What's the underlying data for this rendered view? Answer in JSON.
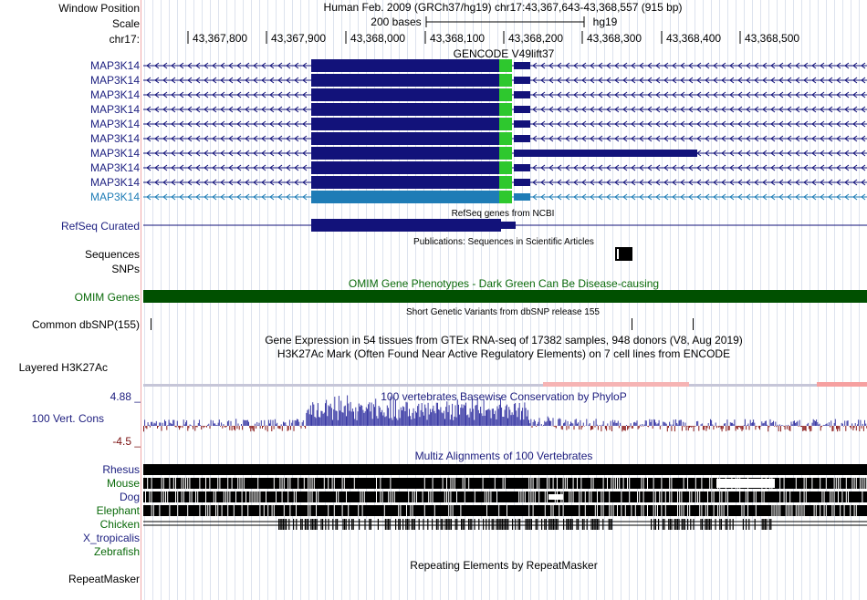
{
  "header": {
    "window_position_label": "Window Position",
    "window_position_value": "Human Feb. 2009 (GRCh37/hg19)   chr17:43,367,643-43,368,557 (915 bp)",
    "scale_label": "Scale",
    "scale_value": "200 bases",
    "scale_assembly": "hg19",
    "chrom_label": "chr17:",
    "ruler_ticks": [
      "43,367,800",
      "43,367,900",
      "43,368,000",
      "43,368,100",
      "43,368,200",
      "43,368,300",
      "43,368,400",
      "43,368,500"
    ]
  },
  "tracks": {
    "gencode_title": "GENCODE V49lift37",
    "gencode_genes": [
      "MAP3K14",
      "MAP3K14",
      "MAP3K14",
      "MAP3K14",
      "MAP3K14",
      "MAP3K14",
      "MAP3K14",
      "MAP3K14",
      "MAP3K14",
      "MAP3K14"
    ],
    "refseq_title": "RefSeq genes from NCBI",
    "refseq_label": "RefSeq Curated",
    "publications_title": "Publications: Sequences in Scientific Articles",
    "sequences_label": "Sequences",
    "snps_label": "SNPs",
    "omim_title": "OMIM Gene Phenotypes - Dark Green Can Be Disease-causing",
    "omim_label": "OMIM Genes",
    "dbsnp_title": "Short Genetic Variants from dbSNP release 155",
    "dbsnp_label": "Common dbSNP(155)",
    "gtex_title": "Gene Expression in 54 tissues from GTEx RNA-seq of 17382 samples, 948 donors (V8, Aug 2019)",
    "h3k27_title": "H3K27Ac Mark (Often Found Near Active Regulatory Elements) on 7 cell lines from ENCODE",
    "h3k27_label": "Layered H3K27Ac",
    "cons_max": "4.88 _",
    "cons_label": "100 Vert. Cons",
    "cons_min": "-4.5 _",
    "cons_title": "100 vertebrates Basewise Conservation by PhyloP",
    "multiz_title": "Multiz Alignments of 100 Vertebrates",
    "species": [
      "Rhesus",
      "Mouse",
      "Dog",
      "Elephant",
      "Chicken",
      "X_tropicalis",
      "Zebrafish"
    ],
    "repeat_title": "Repeating Elements by RepeatMasker",
    "repeat_label": "RepeatMasker"
  },
  "colors": {
    "gene_navy": "#12127a",
    "gene_selected": "#1e7cb6",
    "cds_green": "#2ec82e",
    "omim_green": "#005000",
    "cons_blue": "#3c3ca6",
    "cons_neg": "#8a1a1a",
    "grid": "#dde3ee",
    "separator": "#f1aaaa"
  }
}
